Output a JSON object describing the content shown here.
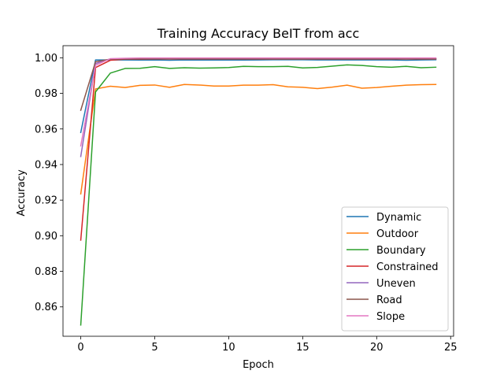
{
  "chart_data": {
    "type": "line",
    "title": "Training Accuracy BeIT from acc",
    "xlabel": "Epoch",
    "ylabel": "Accuracy",
    "xlim": [
      -1.2,
      25.2
    ],
    "ylim": [
      0.8435,
      1.0068
    ],
    "xticks": [
      0,
      5,
      10,
      15,
      20,
      25
    ],
    "yticks": [
      0.86,
      0.88,
      0.9,
      0.92,
      0.94,
      0.96,
      0.98,
      1.0
    ],
    "ytick_labels": [
      "0.86",
      "0.88",
      "0.90",
      "0.92",
      "0.94",
      "0.96",
      "0.98",
      "1.00"
    ],
    "legend_position": "lower right",
    "grid": false,
    "x": [
      0,
      1,
      2,
      3,
      4,
      5,
      6,
      7,
      8,
      9,
      10,
      11,
      12,
      13,
      14,
      15,
      16,
      17,
      18,
      19,
      20,
      21,
      22,
      23,
      24
    ],
    "series": [
      {
        "name": "Dynamic",
        "color": "#1f77b4",
        "values": [
          0.958,
          0.9988,
          0.9988,
          0.9988,
          0.9987,
          0.9988,
          0.9986,
          0.9988,
          0.9987,
          0.9987,
          0.9987,
          0.9987,
          0.9988,
          0.9989,
          0.9989,
          0.9989,
          0.9988,
          0.9988,
          0.9988,
          0.9988,
          0.9988,
          0.9988,
          0.9986,
          0.9988,
          0.9989
        ]
      },
      {
        "name": "Outdoor",
        "color": "#ff7f0e",
        "values": [
          0.9235,
          0.9825,
          0.984,
          0.9833,
          0.9845,
          0.9847,
          0.9834,
          0.985,
          0.9847,
          0.9841,
          0.9841,
          0.9846,
          0.9846,
          0.9849,
          0.9837,
          0.9834,
          0.9827,
          0.9835,
          0.9846,
          0.9829,
          0.9833,
          0.984,
          0.9846,
          0.9849,
          0.985
        ]
      },
      {
        "name": "Boundary",
        "color": "#2ca02c",
        "values": [
          0.8498,
          0.9808,
          0.9914,
          0.994,
          0.9941,
          0.995,
          0.994,
          0.9944,
          0.9942,
          0.9943,
          0.9945,
          0.9952,
          0.995,
          0.995,
          0.9952,
          0.9943,
          0.9946,
          0.9953,
          0.996,
          0.9957,
          0.995,
          0.9947,
          0.9952,
          0.9944,
          0.9947
        ]
      },
      {
        "name": "Constrained",
        "color": "#d62728",
        "values": [
          0.8975,
          0.9945,
          0.9986,
          0.9992,
          0.9992,
          0.9993,
          0.9993,
          0.9993,
          0.9993,
          0.9993,
          0.9993,
          0.9993,
          0.9993,
          0.9993,
          0.9993,
          0.9993,
          0.9993,
          0.9993,
          0.9993,
          0.9993,
          0.9993,
          0.9993,
          0.9993,
          0.9993,
          0.9993
        ]
      },
      {
        "name": "Uneven",
        "color": "#9467bd",
        "values": [
          0.9445,
          0.9968,
          0.9993,
          0.9994,
          0.9994,
          0.9994,
          0.9994,
          0.9994,
          0.9994,
          0.9994,
          0.9994,
          0.9994,
          0.9994,
          0.9994,
          0.9994,
          0.9994,
          0.9994,
          0.9994,
          0.9994,
          0.9994,
          0.9994,
          0.9994,
          0.9994,
          0.9994,
          0.9994
        ]
      },
      {
        "name": "Road",
        "color": "#8c564b",
        "values": [
          0.9705,
          0.9978,
          0.9992,
          0.9994,
          0.9994,
          0.9994,
          0.9994,
          0.9994,
          0.9994,
          0.9994,
          0.9994,
          0.9994,
          0.9994,
          0.9994,
          0.9994,
          0.9994,
          0.9994,
          0.9994,
          0.9994,
          0.9994,
          0.9994,
          0.9994,
          0.9994,
          0.9994,
          0.9994
        ]
      },
      {
        "name": "Slope",
        "color": "#e377c2",
        "values": [
          0.9505,
          0.9958,
          0.9995,
          0.9997,
          0.9999,
          0.9999,
          0.9999,
          0.9999,
          0.9999,
          0.9999,
          0.9999,
          0.9999,
          0.9999,
          0.9999,
          0.9999,
          0.9999,
          0.9999,
          0.9999,
          0.9999,
          0.9999,
          0.9999,
          0.9999,
          0.9999,
          0.9999,
          0.9999
        ]
      }
    ]
  }
}
